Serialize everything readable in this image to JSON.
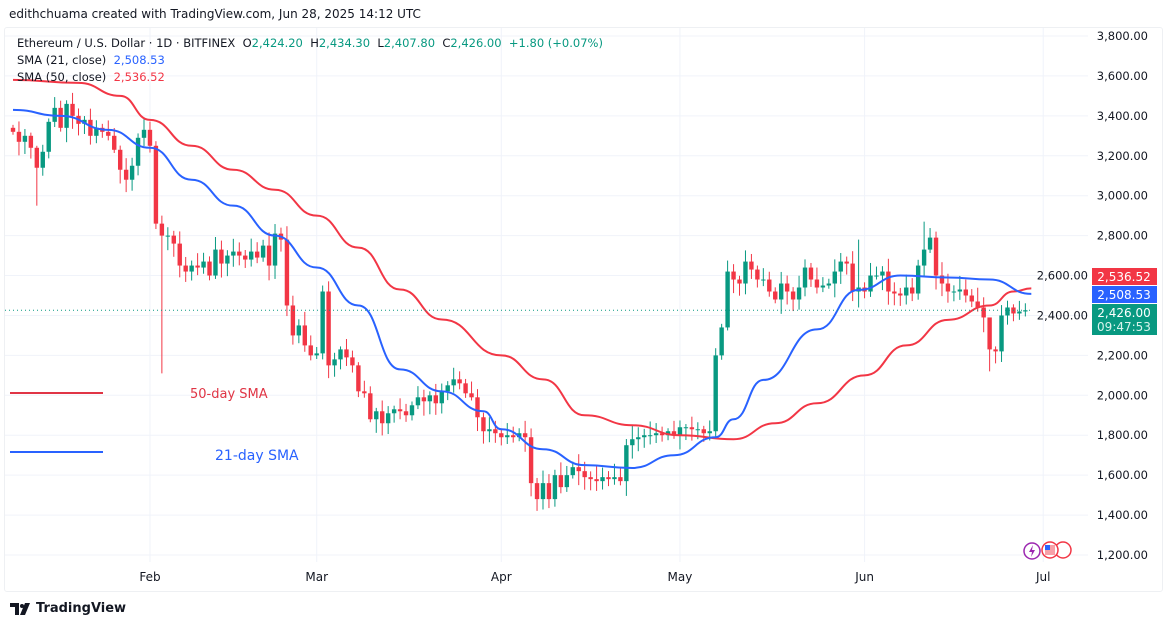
{
  "credit": "edithchuama created with TradingView.com, Jun 28, 2025 14:12 UTC",
  "legend": {
    "symbol": "Ethereum / U.S. Dollar · 1D · BITFINEX",
    "o_label": "O",
    "o": "2,424.20",
    "h_label": "H",
    "h": "2,434.30",
    "l_label": "L",
    "l": "2,407.80",
    "c_label": "C",
    "c": "2,426.00",
    "change": "+1.80 (+0.07%)",
    "sma21_label": "SMA (21, close)",
    "sma21": "2,508.53",
    "sma50_label": "SMA (50, close)",
    "sma50": "2,536.52"
  },
  "annotations": {
    "sma50": "50-day SMA",
    "sma21": "21-day SMA"
  },
  "price_tags": {
    "sma50": "2,536.52",
    "sma21": "2,508.53",
    "last": "2,426.00",
    "countdown": "09:47:53"
  },
  "footer": {
    "brand": "TradingView"
  },
  "colors": {
    "up": "#089981",
    "down": "#f23645",
    "sma21": "#2962ff",
    "sma50": "#f23645",
    "grid": "#f0f3fa"
  },
  "chart_data": {
    "type": "candlestick",
    "title": "Ethereum / U.S. Dollar · 1D · BITFINEX",
    "start_date": "2025-01-09",
    "end_date": "2025-06-28",
    "ylim": [
      1200,
      3800
    ],
    "y_ticks": [
      "1,200.00",
      "1,400.00",
      "1,600.00",
      "1,800.00",
      "2,000.00",
      "2,200.00",
      "2,400.00",
      "2,600.00",
      "2,800.00",
      "3,000.00",
      "3,200.00",
      "3,400.00",
      "3,600.00",
      "3,800.00"
    ],
    "x_ticks": [
      {
        "label": "Feb",
        "day": 23
      },
      {
        "label": "Mar",
        "day": 51
      },
      {
        "label": "Apr",
        "day": 82
      },
      {
        "label": "May",
        "day": 112
      },
      {
        "label": "Jun",
        "day": 143
      },
      {
        "label": "Jul",
        "day": 173
      }
    ],
    "first_open": 3340,
    "closes": [
      3320,
      3270,
      3300,
      3240,
      3140,
      3220,
      3370,
      3440,
      3340,
      3460,
      3400,
      3360,
      3380,
      3300,
      3340,
      3320,
      3300,
      3230,
      3130,
      3080,
      3150,
      3290,
      3330,
      3250,
      2860,
      2800,
      2800,
      2760,
      2650,
      2620,
      2650,
      2640,
      2670,
      2600,
      2730,
      2660,
      2700,
      2720,
      2700,
      2680,
      2720,
      2690,
      2750,
      2650,
      2810,
      2780,
      2450,
      2300,
      2350,
      2250,
      2200,
      2210,
      2520,
      2150,
      2180,
      2230,
      2190,
      2150,
      2020,
      2010,
      1880,
      1920,
      1860,
      1910,
      1930,
      1920,
      1900,
      1950,
      1990,
      1970,
      2000,
      1960,
      2020,
      2050,
      2080,
      2060,
      2010,
      1990,
      1890,
      1820,
      1830,
      1810,
      1790,
      1800,
      1790,
      1810,
      1790,
      1560,
      1480,
      1560,
      1480,
      1600,
      1540,
      1600,
      1640,
      1620,
      1590,
      1580,
      1570,
      1590,
      1580,
      1590,
      1570,
      1750,
      1780,
      1790,
      1800,
      1800,
      1810,
      1800,
      1820,
      1800,
      1840,
      1840,
      1830,
      1830,
      1810,
      1820,
      2200,
      2340,
      2620,
      2580,
      2560,
      2670,
      2630,
      2580,
      2580,
      2520,
      2480,
      2560,
      2520,
      2480,
      2540,
      2640,
      2580,
      2540,
      2550,
      2560,
      2620,
      2670,
      2660,
      2520,
      2540,
      2520,
      2600,
      2600,
      2620,
      2520,
      2510,
      2500,
      2540,
      2510,
      2650,
      2730,
      2790,
      2600,
      2560,
      2520,
      2520,
      2530,
      2500,
      2470,
      2440,
      2390,
      2230,
      2220,
      2400,
      2440,
      2410,
      2420,
      2426
    ],
    "wick_overrides": {
      "4": [
        3250,
        2950
      ],
      "25": [
        2900,
        2110
      ],
      "52": [
        2550,
        2180
      ],
      "142": [
        2780,
        2440
      ],
      "153": [
        2870,
        2600
      ],
      "164": [
        2380,
        2120
      ]
    },
    "series": [
      {
        "name": "SMA (21, close)",
        "points": [
          [
            0,
            3430
          ],
          [
            8,
            3400
          ],
          [
            16,
            3330
          ],
          [
            23,
            3240
          ],
          [
            30,
            3080
          ],
          [
            37,
            2950
          ],
          [
            44,
            2800
          ],
          [
            51,
            2640
          ],
          [
            58,
            2450
          ],
          [
            65,
            2130
          ],
          [
            72,
            2020
          ],
          [
            79,
            1920
          ],
          [
            82,
            1830
          ],
          [
            89,
            1730
          ],
          [
            96,
            1650
          ],
          [
            104,
            1636
          ],
          [
            111,
            1700
          ],
          [
            118,
            1790
          ],
          [
            121,
            1880
          ],
          [
            126,
            2077
          ],
          [
            135,
            2330
          ],
          [
            142,
            2528
          ],
          [
            149,
            2600
          ],
          [
            157,
            2590
          ],
          [
            164,
            2580
          ],
          [
            171,
            2508
          ]
        ]
      },
      {
        "name": "SMA (50, close)",
        "points": [
          [
            0,
            3580
          ],
          [
            11,
            3565
          ],
          [
            18,
            3500
          ],
          [
            23,
            3380
          ],
          [
            30,
            3250
          ],
          [
            37,
            3130
          ],
          [
            44,
            3030
          ],
          [
            51,
            2900
          ],
          [
            58,
            2740
          ],
          [
            65,
            2530
          ],
          [
            72,
            2380
          ],
          [
            82,
            2200
          ],
          [
            89,
            2080
          ],
          [
            96,
            1900
          ],
          [
            104,
            1850
          ],
          [
            112,
            1800
          ],
          [
            121,
            1780
          ],
          [
            128,
            1860
          ],
          [
            135,
            1960
          ],
          [
            143,
            2100
          ],
          [
            150,
            2250
          ],
          [
            157,
            2378
          ],
          [
            164,
            2450
          ],
          [
            168,
            2520
          ],
          [
            171,
            2536
          ]
        ]
      }
    ]
  }
}
